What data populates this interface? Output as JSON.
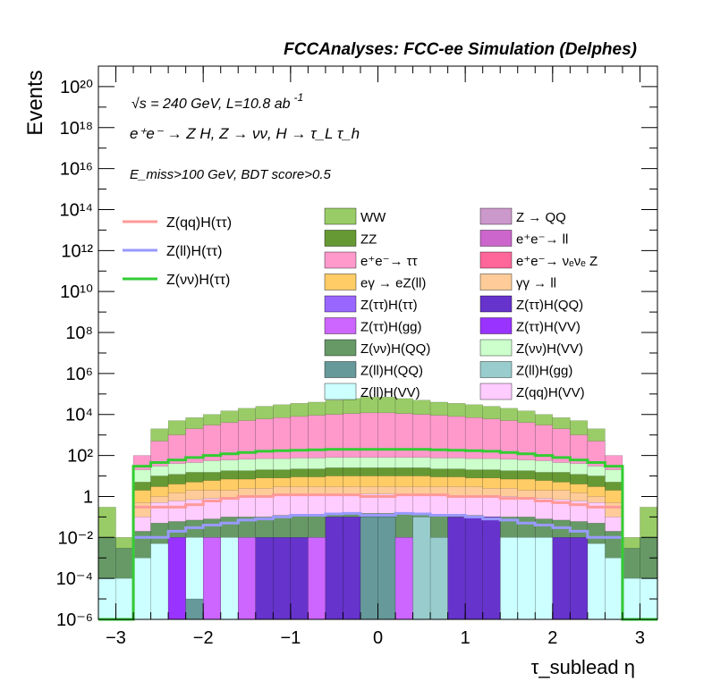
{
  "header": {
    "title": "FCCAnalyses: FCC-ee Simulation (Delphes)"
  },
  "annotations": {
    "energy": "√s = 240 GeV, L=10.8 ab",
    "energy_sup": "-1",
    "process": "e⁺e⁻ → Z H, Z → νν, H → τ_L τ_h",
    "cuts": "E_miss>100 GeV, BDT score>0.5"
  },
  "chart_data": {
    "type": "bar",
    "stacked": true,
    "log_y": true,
    "title": "FCCAnalyses: FCC-ee Simulation (Delphes)",
    "xlabel": "τ_sublead η",
    "ylabel": "Events",
    "xlim": [
      -3.2,
      3.2
    ],
    "ylim": [
      1e-06,
      1e+21
    ],
    "x_ticks": [
      "−3",
      "−2",
      "−1",
      "0",
      "1",
      "2",
      "3"
    ],
    "y_ticks": [
      "10⁻⁶",
      "10⁻⁴",
      "10⁻²",
      "1",
      "10²",
      "10⁴",
      "10⁶",
      "10⁸",
      "10¹⁰",
      "10¹²",
      "10¹⁴",
      "10¹⁶",
      "10¹⁸",
      "10²⁰"
    ],
    "bin_edges": [
      -3.2,
      -3.0,
      -2.8,
      -2.6,
      -2.4,
      -2.2,
      -2.0,
      -1.8,
      -1.6,
      -1.4,
      -1.2,
      -1.0,
      -0.8,
      -0.6,
      -0.4,
      -0.2,
      0.0,
      0.2,
      0.4,
      0.6,
      0.8,
      1.0,
      1.2,
      1.4,
      1.6,
      1.8,
      2.0,
      2.2,
      2.4,
      2.6,
      2.8,
      3.0,
      3.2
    ],
    "stack_levels": {
      "WW": [
        0.3,
        0.01,
        1.0,
        2000.0,
        5000.0,
        7000.0,
        10000.0,
        15000.0,
        20000.0,
        25000.0,
        30000.0,
        35000.0,
        40000.0,
        50000.0,
        60000.0,
        70000.0,
        70000.0,
        60000.0,
        50000.0,
        40000.0,
        35000.0,
        30000.0,
        25000.0,
        20000.0,
        15000.0,
        10000.0,
        7000.0,
        5000.0,
        2000.0,
        1.0,
        0.01,
        0.3
      ],
      "ee_tautau": [
        0.001,
        0.001,
        100,
        500,
        1000,
        2000,
        3000,
        4000,
        5000,
        6000,
        7000,
        8000,
        9000,
        10000.0,
        11000.0,
        12000.0,
        12000.0,
        11000.0,
        10000.0,
        9000,
        8000,
        7000,
        6000,
        5000,
        4000,
        3000,
        2000,
        1000,
        500,
        100,
        0.001,
        0.001
      ],
      "ZvvHVV": [
        0.001,
        0.001,
        20,
        30,
        40,
        45,
        55,
        60,
        65,
        70,
        70,
        75,
        75,
        80,
        80,
        80,
        80,
        80,
        80,
        75,
        75,
        70,
        70,
        65,
        60,
        55,
        45,
        40,
        30,
        20,
        0.001,
        0.001
      ],
      "ZZ": [
        0.001,
        0.001,
        5,
        10,
        12,
        15,
        15,
        18,
        18,
        20,
        20,
        22,
        22,
        25,
        25,
        25,
        25,
        25,
        25,
        22,
        22,
        20,
        20,
        18,
        18,
        15,
        15,
        12,
        10,
        5,
        0.001,
        0.001
      ],
      "eeZ": [
        0.001,
        0.001,
        2,
        3,
        4,
        5,
        6,
        7,
        7,
        8,
        8,
        9,
        9,
        10,
        10,
        10,
        10,
        10,
        10,
        9,
        9,
        8,
        8,
        7,
        7,
        6,
        5,
        4,
        3,
        2,
        0.001,
        0.001
      ],
      "gg_ll": [
        0.001,
        0.001,
        0.5,
        1.0,
        1.5,
        2.0,
        2.0,
        2.0,
        2.5,
        2.5,
        3.0,
        3.0,
        3.0,
        3.0,
        3.0,
        3.0,
        3.0,
        3.0,
        3.0,
        3.0,
        3.0,
        3.0,
        2.5,
        2.5,
        2.0,
        2.0,
        2.0,
        1.5,
        1.0,
        0.5,
        0.001,
        0.001
      ],
      "ZqqHVV": [
        0.001,
        0.001,
        0.1,
        0.5,
        0.6,
        0.7,
        0.8,
        0.9,
        1.0,
        1.0,
        1.1,
        1.1,
        1.2,
        1.2,
        1.3,
        1.3,
        1.3,
        1.3,
        1.2,
        1.2,
        1.1,
        1.1,
        1.0,
        1.0,
        0.9,
        0.8,
        0.7,
        0.6,
        0.5,
        0.1,
        0.001,
        0.001
      ],
      "ZvvHQQ": [
        0.01,
        0.003,
        0.02,
        0.05,
        0.06,
        0.07,
        0.08,
        0.1,
        0.1,
        0.1,
        0.12,
        0.12,
        0.13,
        0.13,
        0.15,
        0.15,
        0.15,
        0.15,
        0.13,
        0.13,
        0.12,
        0.12,
        0.1,
        0.1,
        0.1,
        0.08,
        0.07,
        0.06,
        0.05,
        0.02,
        0.003,
        0.01
      ],
      "ZllHVV": [
        0.0001,
        0.0001,
        0.001,
        0.005,
        0.008,
        0.01,
        0.01,
        0.01,
        0.01,
        0.01,
        0.01,
        0.01,
        0.01,
        0.01,
        0.01,
        0.01,
        0.01,
        0.01,
        0.01,
        0.01,
        0.01,
        0.01,
        0.01,
        0.01,
        0.01,
        0.01,
        0.01,
        0.008,
        0.005,
        0.001,
        0.0001,
        0.0001
      ]
    },
    "signals": [
      {
        "name": "Z(qq)H(ττ)",
        "color": "#ff9999",
        "values": [
          1e-07,
          1e-07,
          0.3,
          0.3,
          0.3,
          0.4,
          0.6,
          0.8,
          1.0,
          1.0,
          1.2,
          1.2,
          1.2,
          1.2,
          1.2,
          1.0,
          1.0,
          1.2,
          1.2,
          1.2,
          1.0,
          1.0,
          1.0,
          0.8,
          0.8,
          0.6,
          0.5,
          0.4,
          0.3,
          0.3,
          1e-07,
          1e-07
        ]
      },
      {
        "name": "Z(ll)H(ττ)",
        "color": "#9999ff",
        "values": [
          1e-07,
          1e-07,
          0.01,
          0.01,
          0.02,
          0.03,
          0.04,
          0.05,
          0.07,
          0.08,
          0.1,
          0.12,
          0.12,
          0.14,
          0.15,
          0.12,
          0.12,
          0.15,
          0.14,
          0.12,
          0.12,
          0.1,
          0.08,
          0.07,
          0.05,
          0.04,
          0.03,
          0.02,
          0.01,
          0.01,
          1e-07,
          1e-07
        ]
      },
      {
        "name": "Z(νν)H(ττ)",
        "color": "#33cc33",
        "values": [
          1e-07,
          1e-07,
          30,
          45,
          60,
          80,
          100,
          120,
          140,
          160,
          170,
          180,
          190,
          200,
          200,
          200,
          200,
          200,
          200,
          190,
          180,
          170,
          160,
          140,
          120,
          100,
          80,
          60,
          45,
          30,
          1e-07,
          1e-07
        ]
      }
    ],
    "legend": {
      "signals": [
        "Z(qq)H(ττ)",
        "Z(ll)H(ττ)",
        "Z(νν)H(ττ)"
      ],
      "backgrounds": [
        {
          "label": "WW",
          "color": "#99cc66"
        },
        {
          "label": "Z → QQ",
          "color": "#cc99cc"
        },
        {
          "label": "ZZ",
          "color": "#669933"
        },
        {
          "label": "e⁺e⁻→ ll",
          "color": "#cc66cc"
        },
        {
          "label": "e⁺e⁻→ ττ",
          "color": "#ff99cc"
        },
        {
          "label": "e⁺e⁻→ νₑνₑ Z",
          "color": "#ff6699"
        },
        {
          "label": "eγ → eZ(ll)",
          "color": "#ffcc66"
        },
        {
          "label": "γγ → ll",
          "color": "#ffcc99"
        },
        {
          "label": "Z(ττ)H(ττ)",
          "color": "#9966ff"
        },
        {
          "label": "Z(ττ)H(QQ)",
          "color": "#6633cc"
        },
        {
          "label": "Z(ττ)H(gg)",
          "color": "#cc66ff"
        },
        {
          "label": "Z(ττ)H(VV)",
          "color": "#9933ff"
        },
        {
          "label": "Z(νν)H(QQ)",
          "color": "#669966"
        },
        {
          "label": "Z(νν)H(VV)",
          "color": "#ccffcc"
        },
        {
          "label": "Z(ll)H(QQ)",
          "color": "#669999"
        },
        {
          "label": "Z(ll)H(gg)",
          "color": "#99cccc"
        },
        {
          "label": "Z(ll)H(VV)",
          "color": "#ccffff"
        },
        {
          "label": "Z(qq)H(VV)",
          "color": "#ffccff"
        }
      ]
    },
    "colors": {
      "WW": "#99cc66",
      "ZZ": "#669933",
      "ee_tautau": "#ff99cc",
      "ee_vvZ": "#ff6699",
      "eeZ": "#ffcc66",
      "gg_ll": "#ffcc99",
      "ZvvHVV": "#ccffcc",
      "ZvvHQQ": "#669966",
      "ZllHVV": "#ccffff",
      "ZttHQQ": "#6633cc",
      "ZttHgg": "#cc66ff",
      "ZqqHVV": "#ffccff",
      "ZllHgg": "#99cccc",
      "ZllHQQ": "#669999"
    },
    "low_layers": {
      "ZllHVV": [
        0.0001,
        0.0001,
        1e-07,
        1e-07,
        0.01,
        0.01,
        0.01,
        0.01,
        0.01,
        0.01,
        0.01,
        0.01,
        0.01,
        0.01,
        0.01,
        0.01,
        0.01,
        0.01,
        0.01,
        0.01,
        0.01,
        0.01,
        0.01,
        0.01,
        0.01,
        0.01,
        0.01,
        0.01,
        0.01,
        1e-07,
        0.0001,
        0.0001
      ],
      "purple_blocks": [
        {
          "i": 4,
          "level": 0.01,
          "color": "#9933ff"
        },
        {
          "i": 5,
          "level": 1e-05,
          "color": "#669999"
        },
        {
          "i": 6,
          "level": 0.01,
          "color": "#cc66ff"
        },
        {
          "i": 8,
          "level": 0.01,
          "color": "#cc66ff"
        },
        {
          "i": 9,
          "level": 0.01,
          "color": "#6633cc"
        },
        {
          "i": 10,
          "level": 0.01,
          "color": "#6633cc"
        },
        {
          "i": 11,
          "level": 0.01,
          "color": "#6633cc"
        },
        {
          "i": 12,
          "level": 0.01,
          "color": "#cc66ff"
        },
        {
          "i": 13,
          "level": 0.1,
          "color": "#6633cc"
        },
        {
          "i": 14,
          "level": 0.1,
          "color": "#6633cc"
        },
        {
          "i": 15,
          "level": 0.1,
          "color": "#669999"
        },
        {
          "i": 16,
          "level": 0.1,
          "color": "#669999"
        },
        {
          "i": 17,
          "level": 0.01,
          "color": "#cc66ff"
        },
        {
          "i": 18,
          "level": 0.1,
          "color": "#99cccc"
        },
        {
          "i": 19,
          "level": 0.01,
          "color": "#99cccc"
        },
        {
          "i": 20,
          "level": 0.1,
          "color": "#6633cc"
        },
        {
          "i": 21,
          "level": 0.1,
          "color": "#6633cc"
        },
        {
          "i": 22,
          "level": 0.1,
          "color": "#6633cc"
        },
        {
          "i": 24,
          "level": 0.01,
          "color": "#ccffff"
        },
        {
          "i": 25,
          "level": 0.01,
          "color": "#ccffff"
        },
        {
          "i": 26,
          "level": 0.01,
          "color": "#6633cc"
        },
        {
          "i": 27,
          "level": 0.01,
          "color": "#6633cc"
        }
      ]
    }
  }
}
